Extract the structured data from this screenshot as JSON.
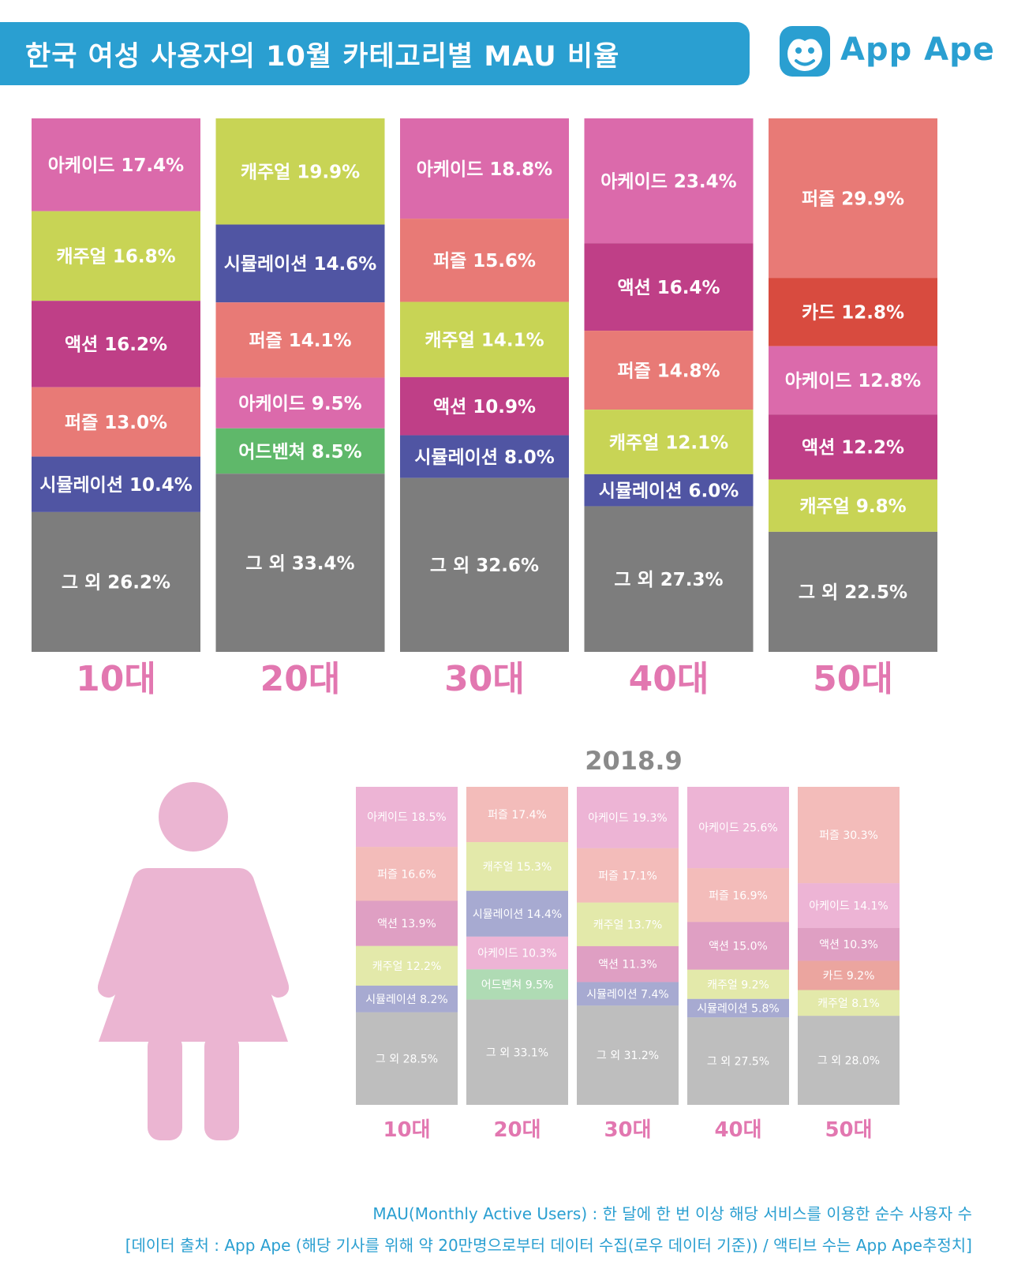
{
  "title": "한국 여성 사용자의 10월 카테고리별 MAU 비율",
  "logo_text": "App Ape",
  "colors": {
    "brand": "#2a9fd1",
    "label_pink": "#e277b0",
    "아케이드": "#db6aab",
    "캐주얼": "#c8d455",
    "액션": "#bf3f87",
    "퍼즐": "#e87a76",
    "시뮬레이션": "#5055a3",
    "어드벤쳐": "#5fb86a",
    "카드": "#d84b3f",
    "그 외": "#7d7d7d",
    "woman_figure": "#ebb5d2"
  },
  "icons": {
    "logo": "monkey-face-icon",
    "figure": "woman-figure-icon"
  },
  "chart_data": [
    {
      "type": "bar",
      "stacked": true,
      "period": "",
      "categories": [
        "10대",
        "20대",
        "30대",
        "40대",
        "50대"
      ],
      "stacks": [
        {
          "group": "10대",
          "segments": [
            {
              "label": "아케이드",
              "value": 17.4
            },
            {
              "label": "캐주얼",
              "value": 16.8
            },
            {
              "label": "액션",
              "value": 16.2
            },
            {
              "label": "퍼즐",
              "value": 13.0
            },
            {
              "label": "시뮬레이션",
              "value": 10.4
            },
            {
              "label": "그 외",
              "value": 26.2
            }
          ]
        },
        {
          "group": "20대",
          "segments": [
            {
              "label": "캐주얼",
              "value": 19.9
            },
            {
              "label": "시뮬레이션",
              "value": 14.6
            },
            {
              "label": "퍼즐",
              "value": 14.1
            },
            {
              "label": "아케이드",
              "value": 9.5
            },
            {
              "label": "어드벤쳐",
              "value": 8.5
            },
            {
              "label": "그 외",
              "value": 33.4
            }
          ]
        },
        {
          "group": "30대",
          "segments": [
            {
              "label": "아케이드",
              "value": 18.8
            },
            {
              "label": "퍼즐",
              "value": 15.6
            },
            {
              "label": "캐주얼",
              "value": 14.1
            },
            {
              "label": "액션",
              "value": 10.9
            },
            {
              "label": "시뮬레이션",
              "value": 8.0
            },
            {
              "label": "그 외",
              "value": 32.6
            }
          ]
        },
        {
          "group": "40대",
          "segments": [
            {
              "label": "아케이드",
              "value": 23.4
            },
            {
              "label": "액션",
              "value": 16.4
            },
            {
              "label": "퍼즐",
              "value": 14.8
            },
            {
              "label": "캐주얼",
              "value": 12.1
            },
            {
              "label": "시뮬레이션",
              "value": 6.0
            },
            {
              "label": "그 외",
              "value": 27.3
            }
          ]
        },
        {
          "group": "50대",
          "segments": [
            {
              "label": "퍼즐",
              "value": 29.9
            },
            {
              "label": "카드",
              "value": 12.8
            },
            {
              "label": "아케이드",
              "value": 12.8
            },
            {
              "label": "액션",
              "value": 12.2
            },
            {
              "label": "캐주얼",
              "value": 9.8
            },
            {
              "label": "그 외",
              "value": 22.5
            }
          ]
        }
      ]
    },
    {
      "type": "bar",
      "stacked": true,
      "period": "2018.9",
      "categories": [
        "10대",
        "20대",
        "30대",
        "40대",
        "50대"
      ],
      "stacks": [
        {
          "group": "10대",
          "segments": [
            {
              "label": "아케이드",
              "value": 18.5
            },
            {
              "label": "퍼즐",
              "value": 16.6
            },
            {
              "label": "액션",
              "value": 13.9
            },
            {
              "label": "캐주얼",
              "value": 12.2
            },
            {
              "label": "시뮬레이션",
              "value": 8.2
            },
            {
              "label": "그 외",
              "value": 28.5
            }
          ]
        },
        {
          "group": "20대",
          "segments": [
            {
              "label": "퍼즐",
              "value": 17.4
            },
            {
              "label": "캐주얼",
              "value": 15.3
            },
            {
              "label": "시뮬레이션",
              "value": 14.4
            },
            {
              "label": "아케이드",
              "value": 10.3
            },
            {
              "label": "어드벤쳐",
              "value": 9.5
            },
            {
              "label": "그 외",
              "value": 33.1
            }
          ]
        },
        {
          "group": "30대",
          "segments": [
            {
              "label": "아케이드",
              "value": 19.3
            },
            {
              "label": "퍼즐",
              "value": 17.1
            },
            {
              "label": "캐주얼",
              "value": 13.7
            },
            {
              "label": "액션",
              "value": 11.3
            },
            {
              "label": "시뮬레이션",
              "value": 7.4
            },
            {
              "label": "그 외",
              "value": 31.2
            }
          ]
        },
        {
          "group": "40대",
          "segments": [
            {
              "label": "아케이드",
              "value": 25.6
            },
            {
              "label": "퍼즐",
              "value": 16.9
            },
            {
              "label": "액션",
              "value": 15.0
            },
            {
              "label": "캐주얼",
              "value": 9.2
            },
            {
              "label": "시뮬레이션",
              "value": 5.8
            },
            {
              "label": "그 외",
              "value": 27.5
            }
          ]
        },
        {
          "group": "50대",
          "segments": [
            {
              "label": "퍼즐",
              "value": 30.3
            },
            {
              "label": "아케이드",
              "value": 14.1
            },
            {
              "label": "액션",
              "value": 10.3
            },
            {
              "label": "카드",
              "value": 9.2
            },
            {
              "label": "캐주얼",
              "value": 8.1
            },
            {
              "label": "그 외",
              "value": 28.0
            }
          ]
        }
      ]
    }
  ],
  "footnotes": {
    "line1": "MAU(Monthly Active Users) : 한 달에 한 번 이상 해당 서비스를 이용한 순수 사용자 수",
    "line2": "[데이터 출처 : App Ape (해당 기사를 위해 약 20만명으로부터 데이터 수집(로우 데이터 기준)) / 액티브 수는 App Ape추정치]"
  }
}
